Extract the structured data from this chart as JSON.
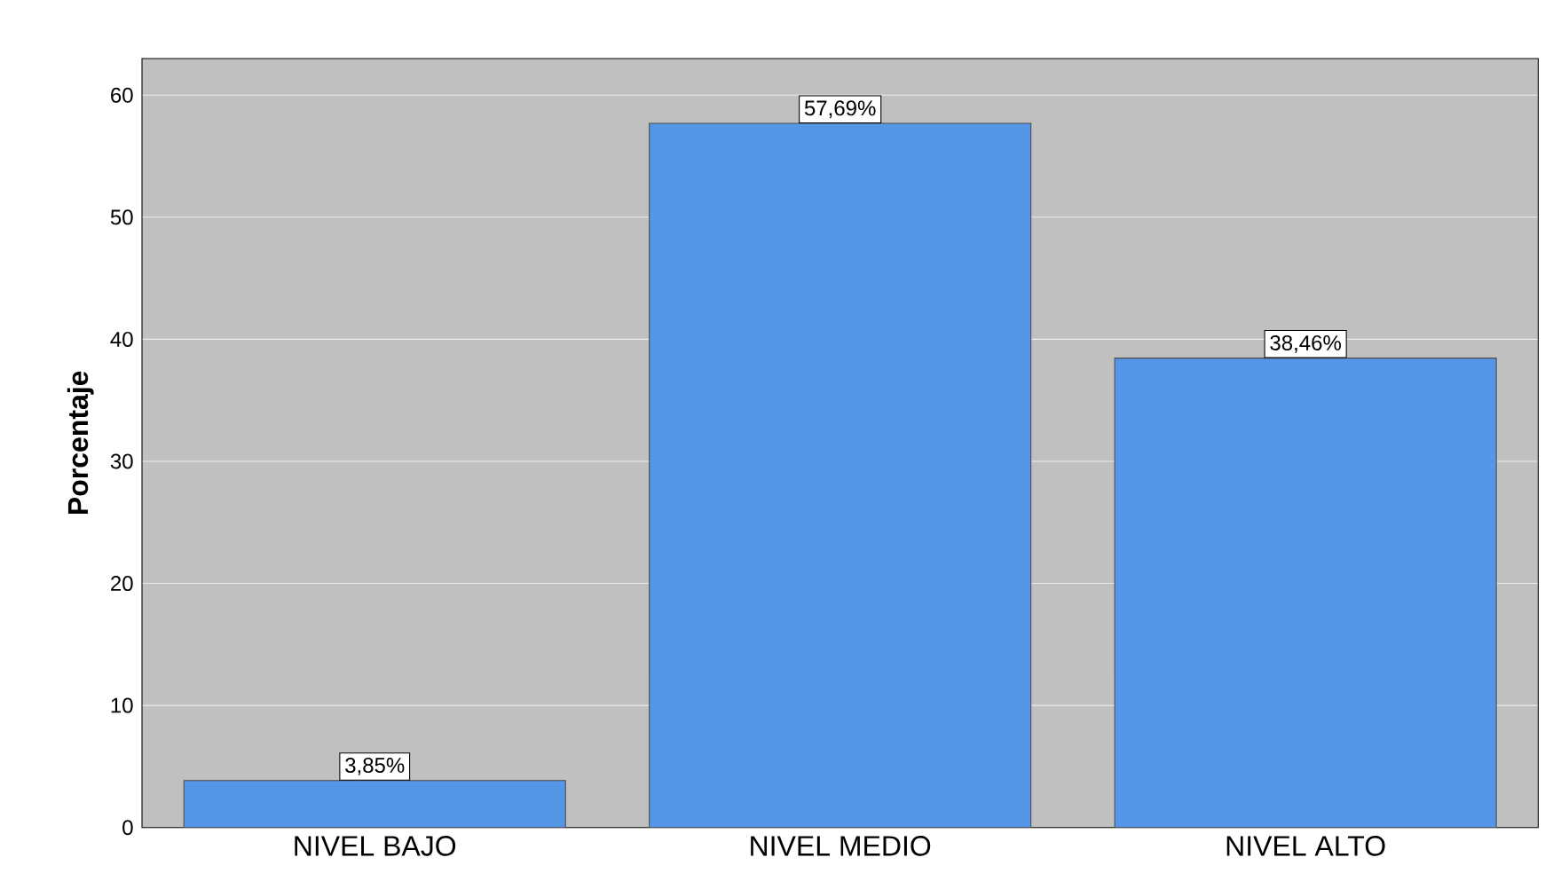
{
  "chart_data": {
    "type": "bar",
    "ylabel": "Porcentaje",
    "categories": [
      "NIVEL BAJO",
      "NIVEL MEDIO",
      "NIVEL ALTO"
    ],
    "values": [
      3.85,
      57.69,
      38.46
    ],
    "value_labels": [
      "3,85%",
      "57,69%",
      "38,46%"
    ],
    "color": "#5596e6",
    "ylim": [
      0,
      63
    ],
    "yticks": [
      0,
      10,
      20,
      30,
      40,
      50,
      60
    ],
    "grid": "y"
  }
}
